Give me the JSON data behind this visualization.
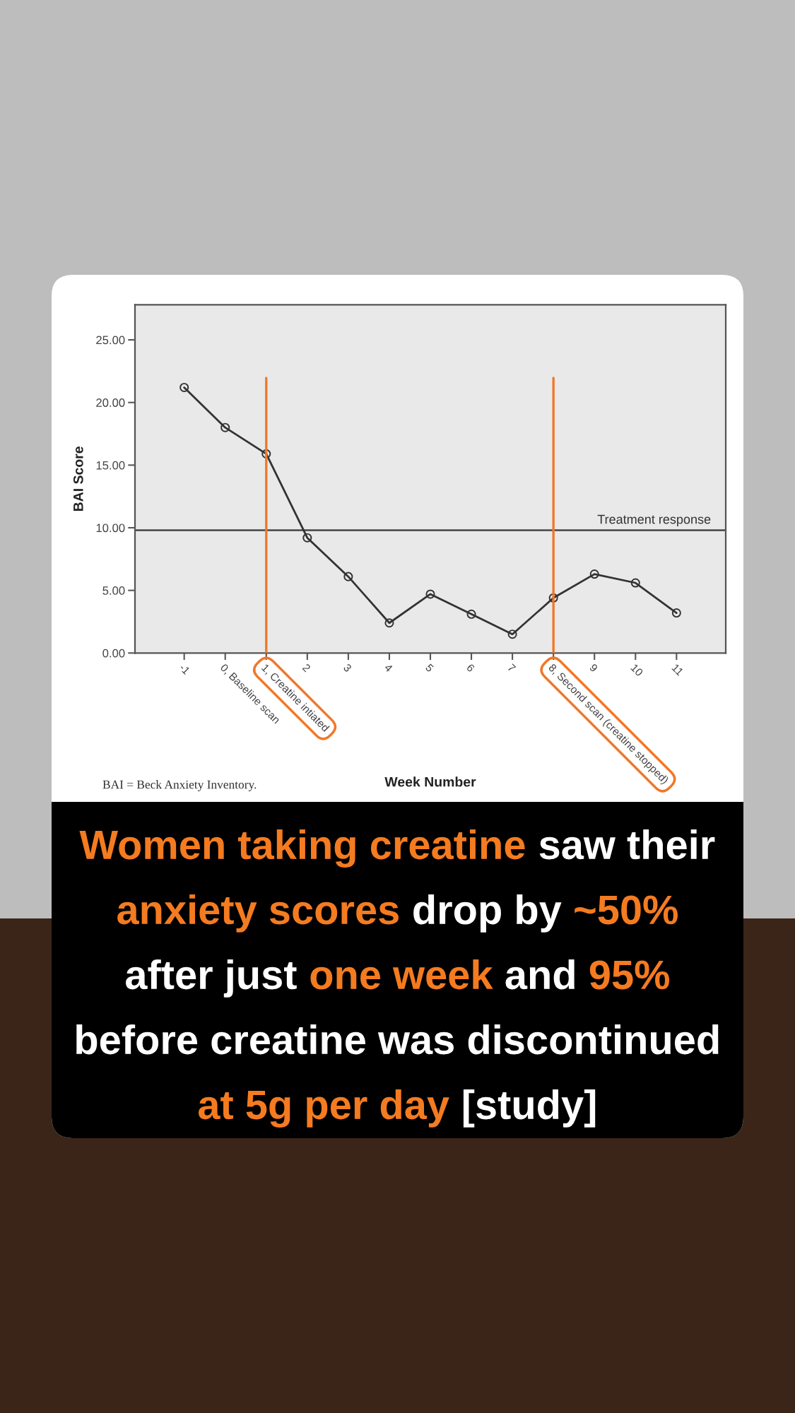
{
  "chart_data": {
    "type": "line",
    "title": "Women taking creatine saw their anxiety scores drop by ~50% after just one week and 95% before creatine was discontinued at 5g per day [study]",
    "xlabel": "Week Number",
    "ylabel": "BAI Score",
    "annotations": [
      "BAI = Beck Anxiety Inventory."
    ],
    "x": [
      -1,
      0,
      1,
      2,
      3,
      4,
      5,
      6,
      7,
      8,
      9,
      10,
      11
    ],
    "series": [
      {
        "color": "#333333",
        "values": [
          21.2,
          18.0,
          15.9,
          9.2,
          6.1,
          2.4,
          4.7,
          3.1,
          1.5,
          4.4,
          6.3,
          5.6,
          3.2
        ]
      }
    ],
    "xlim": [
      -2.2,
      12.2
    ],
    "xticks": [
      -1,
      {
        "value": 0,
        "label": "0, Baseline scan"
      },
      {
        "value": 1,
        "label": "1, Creatine intiated"
      },
      2,
      3,
      4,
      5,
      6,
      7,
      {
        "value": 8,
        "label": "8, Second scan (creatine stopped)"
      },
      9,
      10,
      11
    ],
    "ylim": [
      0,
      27.8
    ],
    "yticks": [
      {
        "value": 0,
        "label": "0.00"
      },
      {
        "value": 5,
        "label": "5.00"
      },
      {
        "value": 10,
        "label": "10.00"
      },
      {
        "value": 15,
        "label": "15.00"
      },
      {
        "value": 20,
        "label": "20.00"
      },
      {
        "value": 25,
        "label": "25.00"
      }
    ],
    "ref_lines": [
      {
        "axis": "y",
        "value": 9.8,
        "label": "Treatment response",
        "color": "#444444"
      },
      {
        "axis": "x",
        "value": 1,
        "color": "#f07828"
      },
      {
        "axis": "x",
        "value": 8,
        "color": "#f07828"
      }
    ],
    "marker": "circle",
    "line_style": "solid"
  }
}
